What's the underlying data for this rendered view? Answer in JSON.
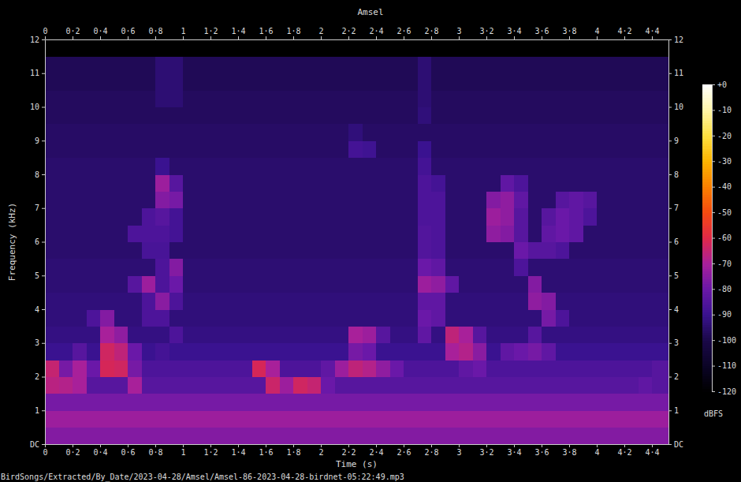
{
  "chart_data": {
    "type": "heatmap",
    "title": "Amsel",
    "x_label": "Time (s)",
    "y_label": "Frequency (kHz)",
    "caption": "BirdSongs/Extracted/By_Date/2023-04-28/Amsel/Amsel-86-2023-04-28-birdnet-05:22:49.mp3",
    "xlim": [
      0,
      4.52
    ],
    "xticks": [
      0,
      {
        "value": 0.2,
        "label": "0·2"
      },
      {
        "value": 0.4,
        "label": "0·4"
      },
      {
        "value": 0.6,
        "label": "0·6"
      },
      {
        "value": 0.8,
        "label": "0·8"
      },
      1,
      {
        "value": 1.2,
        "label": "1·2"
      },
      {
        "value": 1.4,
        "label": "1·4"
      },
      {
        "value": 1.6,
        "label": "1·6"
      },
      {
        "value": 1.8,
        "label": "1·8"
      },
      2,
      {
        "value": 2.2,
        "label": "2·2"
      },
      {
        "value": 2.4,
        "label": "2·4"
      },
      {
        "value": 2.6,
        "label": "2·6"
      },
      {
        "value": 2.8,
        "label": "2·8"
      },
      3,
      {
        "value": 3.2,
        "label": "3·2"
      },
      {
        "value": 3.4,
        "label": "3·4"
      },
      {
        "value": 3.6,
        "label": "3·6"
      },
      {
        "value": 3.8,
        "label": "3·8"
      },
      4,
      {
        "value": 4.2,
        "label": "4·2"
      },
      {
        "value": 4.4,
        "label": "4·4"
      }
    ],
    "ylim": [
      0,
      12
    ],
    "yticks": [
      {
        "value": 0,
        "label": "DC"
      },
      1,
      2,
      3,
      4,
      5,
      6,
      7,
      8,
      9,
      10,
      11,
      12
    ],
    "time_bins": [
      0,
      0.1,
      0.2,
      0.3,
      0.4,
      0.5,
      0.6,
      0.7,
      0.8,
      0.9,
      1,
      1.1,
      1.2,
      1.3,
      1.4,
      1.5,
      1.6,
      1.7,
      1.8,
      1.9,
      2,
      2.1,
      2.2,
      2.3,
      2.4,
      2.5,
      2.6,
      2.7,
      2.8,
      2.9,
      3,
      3.1,
      3.2,
      3.3,
      3.4,
      3.5,
      3.6,
      3.7,
      3.8,
      3.9,
      4,
      4.1,
      4.2,
      4.3,
      4.4,
      4.52
    ],
    "frequency_bins": [
      0,
      0.5,
      1,
      1.5,
      2,
      2.5,
      3,
      3.5,
      4,
      4.5,
      5,
      5.5,
      6,
      6.5,
      7,
      7.5,
      8,
      8.5,
      9,
      9.5,
      10,
      10.5,
      11,
      11.5,
      12
    ],
    "values": [
      [
        -76,
        -76,
        -76,
        -76,
        -76,
        -76,
        -76,
        -76,
        -76,
        -76,
        -76,
        -76,
        -76,
        -76,
        -76,
        -76,
        -76,
        -76,
        -76,
        -76,
        -76,
        -76,
        -76,
        -76,
        -76,
        -76,
        -76,
        -76,
        -76,
        -76,
        -76,
        -76,
        -76,
        -76,
        -76,
        -76,
        -76,
        -76,
        -76,
        -76,
        -76,
        -76,
        -76,
        -76,
        -76
      ],
      [
        -72,
        -72,
        -72,
        -72,
        -72,
        -72,
        -72,
        -72,
        -72,
        -72,
        -72,
        -72,
        -72,
        -72,
        -72,
        -72,
        -72,
        -72,
        -72,
        -72,
        -72,
        -72,
        -72,
        -72,
        -72,
        -72,
        -72,
        -72,
        -72,
        -72,
        -72,
        -72,
        -72,
        -72,
        -72,
        -72,
        -72,
        -72,
        -72,
        -72,
        -72,
        -72,
        -72,
        -72,
        -72
      ],
      [
        -78,
        -78,
        -78,
        -78,
        -78,
        -78,
        -78,
        -78,
        -78,
        -78,
        -78,
        -78,
        -78,
        -78,
        -78,
        -78,
        -78,
        -78,
        -78,
        -78,
        -78,
        -78,
        -78,
        -78,
        -78,
        -78,
        -78,
        -78,
        -78,
        -78,
        -78,
        -78,
        -78,
        -78,
        -78,
        -78,
        -78,
        -78,
        -78,
        -78,
        -78,
        -78,
        -78,
        -78,
        -78
      ],
      [
        -67,
        -68,
        -70,
        -84,
        -84,
        -84,
        -70,
        -84,
        -84,
        -84,
        -84,
        -84,
        -84,
        -84,
        -84,
        -84,
        -64,
        -72,
        -63,
        -65,
        -80,
        -84,
        -84,
        -84,
        -84,
        -84,
        -84,
        -84,
        -84,
        -84,
        -84,
        -84,
        -84,
        -84,
        -84,
        -84,
        -84,
        -84,
        -84,
        -84,
        -84,
        -84,
        -84,
        -82,
        -84
      ],
      [
        -65,
        -78,
        -70,
        -80,
        -62,
        -63,
        -78,
        -86,
        -86,
        -86,
        -86,
        -86,
        -86,
        -86,
        -86,
        -62,
        -70,
        -86,
        -86,
        -86,
        -82,
        -72,
        -66,
        -68,
        -74,
        -80,
        -86,
        -86,
        -86,
        -86,
        -82,
        -80,
        -86,
        -86,
        -86,
        -86,
        -86,
        -86,
        -86,
        -86,
        -86,
        -86,
        -86,
        -86,
        -84
      ],
      [
        -90,
        -90,
        -84,
        -90,
        -63,
        -66,
        -80,
        -90,
        -88,
        -90,
        -90,
        -90,
        -90,
        -90,
        -90,
        -90,
        -90,
        -90,
        -90,
        -90,
        -90,
        -90,
        -78,
        -80,
        -90,
        -90,
        -90,
        -90,
        -90,
        -70,
        -68,
        -75,
        -90,
        -82,
        -80,
        -78,
        -82,
        -90,
        -90,
        -90,
        -90,
        -90,
        -90,
        -90,
        -90
      ],
      [
        -92,
        -92,
        -92,
        -92,
        -70,
        -74,
        -92,
        -92,
        -92,
        -86,
        -92,
        -92,
        -92,
        -92,
        -92,
        -92,
        -92,
        -92,
        -92,
        -92,
        -92,
        -92,
        -70,
        -72,
        -84,
        -92,
        -92,
        -82,
        -92,
        -66,
        -70,
        -84,
        -92,
        -92,
        -92,
        -84,
        -92,
        -92,
        -92,
        -92,
        -92,
        -92,
        -92,
        -92,
        -92
      ],
      [
        -93,
        -93,
        -93,
        -86,
        -76,
        -93,
        -93,
        -86,
        -86,
        -93,
        -93,
        -93,
        -93,
        -93,
        -93,
        -93,
        -93,
        -93,
        -93,
        -93,
        -93,
        -93,
        -93,
        -93,
        -93,
        -93,
        -93,
        -80,
        -82,
        -93,
        -93,
        -93,
        -93,
        -93,
        -93,
        -93,
        -78,
        -86,
        -93,
        -93,
        -93,
        -93,
        -93,
        -93,
        -93
      ],
      [
        -93,
        -93,
        -93,
        -93,
        -93,
        -93,
        -93,
        -86,
        -75,
        -86,
        -93,
        -93,
        -93,
        -93,
        -93,
        -93,
        -93,
        -93,
        -93,
        -93,
        -93,
        -93,
        -93,
        -93,
        -93,
        -93,
        -93,
        -82,
        -82,
        -93,
        -93,
        -93,
        -93,
        -93,
        -93,
        -74,
        -76,
        -93,
        -93,
        -93,
        -93,
        -93,
        -93,
        -93,
        -93
      ],
      [
        -94,
        -94,
        -94,
        -94,
        -94,
        -94,
        -84,
        -72,
        -86,
        -80,
        -94,
        -94,
        -94,
        -94,
        -94,
        -94,
        -94,
        -94,
        -94,
        -94,
        -94,
        -94,
        -94,
        -94,
        -94,
        -94,
        -94,
        -72,
        -74,
        -82,
        -94,
        -94,
        -94,
        -94,
        -94,
        -76,
        -94,
        -94,
        -94,
        -94,
        -94,
        -94,
        -94,
        -94,
        -94
      ],
      [
        -94,
        -94,
        -94,
        -94,
        -94,
        -94,
        -94,
        -94,
        -86,
        -76,
        -94,
        -94,
        -94,
        -94,
        -94,
        -94,
        -94,
        -94,
        -94,
        -94,
        -94,
        -94,
        -94,
        -94,
        -94,
        -94,
        -94,
        -80,
        -82,
        -94,
        -94,
        -94,
        -94,
        -94,
        -86,
        -94,
        -94,
        -94,
        -94,
        -94,
        -94,
        -94,
        -94,
        -94,
        -94
      ],
      [
        -95,
        -95,
        -95,
        -95,
        -95,
        -95,
        -95,
        -87,
        -87,
        -95,
        -95,
        -95,
        -95,
        -95,
        -95,
        -95,
        -95,
        -95,
        -95,
        -95,
        -95,
        -95,
        -95,
        -95,
        -95,
        -95,
        -95,
        -85,
        -86,
        -95,
        -95,
        -95,
        -95,
        -95,
        -80,
        -84,
        -84,
        -86,
        -95,
        -95,
        -95,
        -95,
        -95,
        -95,
        -95
      ],
      [
        -95,
        -95,
        -95,
        -95,
        -95,
        -95,
        -86,
        -86,
        -86,
        -88,
        -95,
        -95,
        -95,
        -95,
        -95,
        -95,
        -95,
        -95,
        -95,
        -95,
        -95,
        -95,
        -95,
        -95,
        -95,
        -95,
        -95,
        -85,
        -86,
        -95,
        -95,
        -95,
        -74,
        -76,
        -84,
        -95,
        -82,
        -80,
        -82,
        -95,
        -95,
        -95,
        -95,
        -95,
        -95
      ],
      [
        -95,
        -95,
        -95,
        -95,
        -95,
        -95,
        -95,
        -86,
        -84,
        -88,
        -95,
        -95,
        -95,
        -95,
        -95,
        -95,
        -95,
        -95,
        -95,
        -95,
        -95,
        -95,
        -95,
        -95,
        -95,
        -95,
        -95,
        -86,
        -86,
        -95,
        -95,
        -95,
        -72,
        -74,
        -84,
        -95,
        -84,
        -80,
        -82,
        -86,
        -95,
        -95,
        -95,
        -95,
        -95
      ],
      [
        -95,
        -95,
        -95,
        -95,
        -95,
        -95,
        -95,
        -95,
        -76,
        -78,
        -95,
        -95,
        -95,
        -95,
        -95,
        -95,
        -95,
        -95,
        -95,
        -95,
        -95,
        -95,
        -95,
        -95,
        -95,
        -95,
        -95,
        -86,
        -86,
        -95,
        -95,
        -95,
        -76,
        -74,
        -82,
        -95,
        -95,
        -84,
        -82,
        -84,
        -95,
        -95,
        -95,
        -95,
        -95
      ],
      [
        -95,
        -95,
        -95,
        -95,
        -95,
        -95,
        -95,
        -95,
        -72,
        -84,
        -95,
        -95,
        -95,
        -95,
        -95,
        -95,
        -95,
        -95,
        -95,
        -95,
        -95,
        -95,
        -95,
        -95,
        -95,
        -95,
        -95,
        -86,
        -88,
        -95,
        -95,
        -95,
        -95,
        -82,
        -86,
        -95,
        -95,
        -95,
        -95,
        -95,
        -95,
        -95,
        -95,
        -95,
        -95
      ],
      [
        -95,
        -95,
        -95,
        -95,
        -95,
        -95,
        -95,
        -95,
        -90,
        -95,
        -95,
        -95,
        -95,
        -95,
        -95,
        -95,
        -95,
        -95,
        -95,
        -95,
        -95,
        -95,
        -95,
        -95,
        -95,
        -95,
        -95,
        -88,
        -95,
        -95,
        -95,
        -95,
        -95,
        -95,
        -95,
        -95,
        -95,
        -95,
        -95,
        -95,
        -95,
        -95,
        -95,
        -95,
        -95
      ],
      [
        -96,
        -96,
        -96,
        -96,
        -96,
        -96,
        -96,
        -96,
        -96,
        -96,
        -96,
        -96,
        -96,
        -96,
        -96,
        -96,
        -96,
        -96,
        -96,
        -96,
        -96,
        -96,
        -88,
        -89,
        -96,
        -96,
        -96,
        -90,
        -96,
        -96,
        -96,
        -96,
        -96,
        -96,
        -96,
        -96,
        -96,
        -96,
        -96,
        -96,
        -96,
        -96,
        -96,
        -96,
        -96
      ],
      [
        -96,
        -96,
        -96,
        -96,
        -96,
        -96,
        -96,
        -96,
        -96,
        -96,
        -96,
        -96,
        -96,
        -96,
        -96,
        -96,
        -96,
        -96,
        -96,
        -96,
        -96,
        -96,
        -93,
        -96,
        -96,
        -96,
        -96,
        -96,
        -96,
        -96,
        -96,
        -96,
        -96,
        -96,
        -96,
        -96,
        -96,
        -96,
        -96,
        -96,
        -96,
        -96,
        -96,
        -96,
        -96
      ],
      [
        -97,
        -97,
        -97,
        -97,
        -97,
        -97,
        -97,
        -97,
        -97,
        -97,
        -97,
        -97,
        -97,
        -97,
        -97,
        -97,
        -97,
        -97,
        -97,
        -97,
        -97,
        -97,
        -97,
        -97,
        -97,
        -97,
        -97,
        -93,
        -97,
        -97,
        -97,
        -97,
        -97,
        -97,
        -97,
        -97,
        -97,
        -97,
        -97,
        -97,
        -97,
        -97,
        -97,
        -97,
        -97
      ],
      [
        -97,
        -97,
        -97,
        -97,
        -97,
        -97,
        -97,
        -97,
        -94,
        -94,
        -97,
        -97,
        -97,
        -97,
        -97,
        -97,
        -97,
        -97,
        -97,
        -97,
        -97,
        -97,
        -97,
        -97,
        -97,
        -97,
        -97,
        -94,
        -97,
        -97,
        -97,
        -97,
        -97,
        -97,
        -97,
        -97,
        -97,
        -97,
        -97,
        -97,
        -97,
        -97,
        -97,
        -97,
        -97
      ],
      [
        -98,
        -98,
        -98,
        -98,
        -98,
        -98,
        -98,
        -98,
        -94,
        -94,
        -98,
        -98,
        -98,
        -98,
        -98,
        -98,
        -98,
        -98,
        -98,
        -98,
        -98,
        -98,
        -98,
        -98,
        -98,
        -98,
        -98,
        -94,
        -98,
        -98,
        -98,
        -98,
        -98,
        -98,
        -98,
        -98,
        -98,
        -98,
        -98,
        -98,
        -98,
        -98,
        -98,
        -98,
        -98
      ],
      [
        -98,
        -98,
        -98,
        -98,
        -98,
        -98,
        -98,
        -98,
        -94,
        -94,
        -98,
        -98,
        -98,
        -98,
        -98,
        -98,
        -98,
        -98,
        -98,
        -98,
        -98,
        -98,
        -98,
        -98,
        -98,
        -98,
        -98,
        -94,
        -98,
        -98,
        -98,
        -98,
        -98,
        -98,
        -98,
        -98,
        -98,
        -98,
        -98,
        -98,
        -98,
        -98,
        -98,
        -98,
        -98
      ],
      [
        -120,
        -120,
        -120,
        -120,
        -120,
        -120,
        -120,
        -120,
        -120,
        -120,
        -120,
        -120,
        -120,
        -120,
        -120,
        -120,
        -120,
        -120,
        -120,
        -120,
        -120,
        -120,
        -120,
        -120,
        -120,
        -120,
        -120,
        -120,
        -120,
        -120,
        -120,
        -120,
        -120,
        -120,
        -120,
        -120,
        -120,
        -120,
        -120,
        -120,
        -120,
        -120,
        -120,
        -120,
        -120
      ]
    ],
    "colorbar": {
      "range": [
        -120,
        0
      ],
      "ticks": [
        {
          "value": 0,
          "label": "+0"
        },
        -10,
        -20,
        -30,
        -40,
        -50,
        -60,
        -70,
        -80,
        -90,
        -100,
        -110,
        -120
      ],
      "label": "dBFS"
    }
  }
}
